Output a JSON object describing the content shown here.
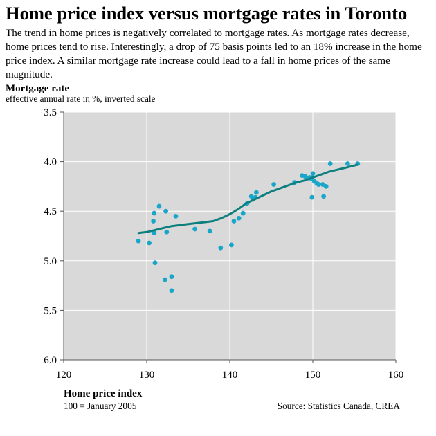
{
  "title": "Home price index versus mortgage rates in Toronto",
  "subtitle": "The trend in home prices is negatively correlated to mortgage rates. As mortgage rates decrease, home prices tend to rise. Interestingly, a drop of 75 basis points led to an 18% increase in the home price index. A similar mortgage rate increase could lead to a fall in home prices of the same magnitude.",
  "y_axis": {
    "title": "Mortgage rate",
    "subtitle": "effective annual rate in %, inverted scale"
  },
  "x_axis": {
    "title": "Home price index",
    "subtitle": "100 = January 2005"
  },
  "source": "Source: Statistics Canada, CREA",
  "colors": {
    "plot_background": "#d9d9d9",
    "gridline": "#ffffff",
    "points": "#1aa6c9",
    "trend": "#0e7f7f"
  },
  "chart_data": {
    "type": "scatter",
    "xlim": [
      120,
      160
    ],
    "ylim": [
      3.5,
      6.0
    ],
    "y_inverted": true,
    "grid": true,
    "x_ticks": [
      120,
      130,
      140,
      150,
      160
    ],
    "y_ticks": [
      3.5,
      4.0,
      4.5,
      5.0,
      5.5,
      6.0
    ],
    "x_tick_labels": [
      "120",
      "130",
      "140",
      "150",
      "160"
    ],
    "y_tick_labels": [
      "3.5",
      "4.0",
      "4.5",
      "5.0",
      "5.5",
      "6.0"
    ],
    "points": [
      {
        "x": 129.0,
        "y": 4.8
      },
      {
        "x": 130.3,
        "y": 4.82
      },
      {
        "x": 130.8,
        "y": 4.6
      },
      {
        "x": 130.9,
        "y": 4.52
      },
      {
        "x": 130.9,
        "y": 4.72
      },
      {
        "x": 131.0,
        "y": 5.02
      },
      {
        "x": 131.5,
        "y": 4.45
      },
      {
        "x": 132.2,
        "y": 5.19
      },
      {
        "x": 132.3,
        "y": 4.5
      },
      {
        "x": 132.4,
        "y": 4.71
      },
      {
        "x": 133.0,
        "y": 5.16
      },
      {
        "x": 133.0,
        "y": 5.3
      },
      {
        "x": 133.5,
        "y": 4.55
      },
      {
        "x": 135.8,
        "y": 4.68
      },
      {
        "x": 137.6,
        "y": 4.7
      },
      {
        "x": 138.9,
        "y": 4.87
      },
      {
        "x": 140.2,
        "y": 4.84
      },
      {
        "x": 140.5,
        "y": 4.6
      },
      {
        "x": 141.1,
        "y": 4.57
      },
      {
        "x": 141.6,
        "y": 4.52
      },
      {
        "x": 142.1,
        "y": 4.42
      },
      {
        "x": 142.6,
        "y": 4.35
      },
      {
        "x": 142.8,
        "y": 4.38
      },
      {
        "x": 143.1,
        "y": 4.36
      },
      {
        "x": 143.2,
        "y": 4.31
      },
      {
        "x": 145.3,
        "y": 4.23
      },
      {
        "x": 147.8,
        "y": 4.21
      },
      {
        "x": 148.7,
        "y": 4.14
      },
      {
        "x": 149.1,
        "y": 4.15
      },
      {
        "x": 149.6,
        "y": 4.16
      },
      {
        "x": 149.8,
        "y": 4.17
      },
      {
        "x": 149.9,
        "y": 4.36
      },
      {
        "x": 150.0,
        "y": 4.12
      },
      {
        "x": 150.2,
        "y": 4.2
      },
      {
        "x": 150.5,
        "y": 4.22
      },
      {
        "x": 150.7,
        "y": 4.23
      },
      {
        "x": 151.2,
        "y": 4.23
      },
      {
        "x": 151.3,
        "y": 4.35
      },
      {
        "x": 151.6,
        "y": 4.25
      },
      {
        "x": 152.1,
        "y": 4.02
      },
      {
        "x": 154.2,
        "y": 4.02
      },
      {
        "x": 155.4,
        "y": 4.02
      }
    ],
    "trend": [
      {
        "x": 129.0,
        "y": 4.72
      },
      {
        "x": 130.0,
        "y": 4.71
      },
      {
        "x": 131.0,
        "y": 4.69
      },
      {
        "x": 132.0,
        "y": 4.67
      },
      {
        "x": 133.0,
        "y": 4.65
      },
      {
        "x": 134.0,
        "y": 4.64
      },
      {
        "x": 135.0,
        "y": 4.63
      },
      {
        "x": 136.0,
        "y": 4.62
      },
      {
        "x": 137.0,
        "y": 4.61
      },
      {
        "x": 138.0,
        "y": 4.6
      },
      {
        "x": 139.0,
        "y": 4.57
      },
      {
        "x": 140.0,
        "y": 4.53
      },
      {
        "x": 141.0,
        "y": 4.48
      },
      {
        "x": 142.0,
        "y": 4.42
      },
      {
        "x": 143.0,
        "y": 4.38
      },
      {
        "x": 144.0,
        "y": 4.34
      },
      {
        "x": 145.0,
        "y": 4.3
      },
      {
        "x": 146.0,
        "y": 4.27
      },
      {
        "x": 147.0,
        "y": 4.24
      },
      {
        "x": 148.0,
        "y": 4.21
      },
      {
        "x": 149.0,
        "y": 4.19
      },
      {
        "x": 150.0,
        "y": 4.16
      },
      {
        "x": 151.0,
        "y": 4.13
      },
      {
        "x": 152.0,
        "y": 4.1
      },
      {
        "x": 153.0,
        "y": 4.08
      },
      {
        "x": 154.0,
        "y": 4.06
      },
      {
        "x": 155.4,
        "y": 4.03
      }
    ]
  }
}
